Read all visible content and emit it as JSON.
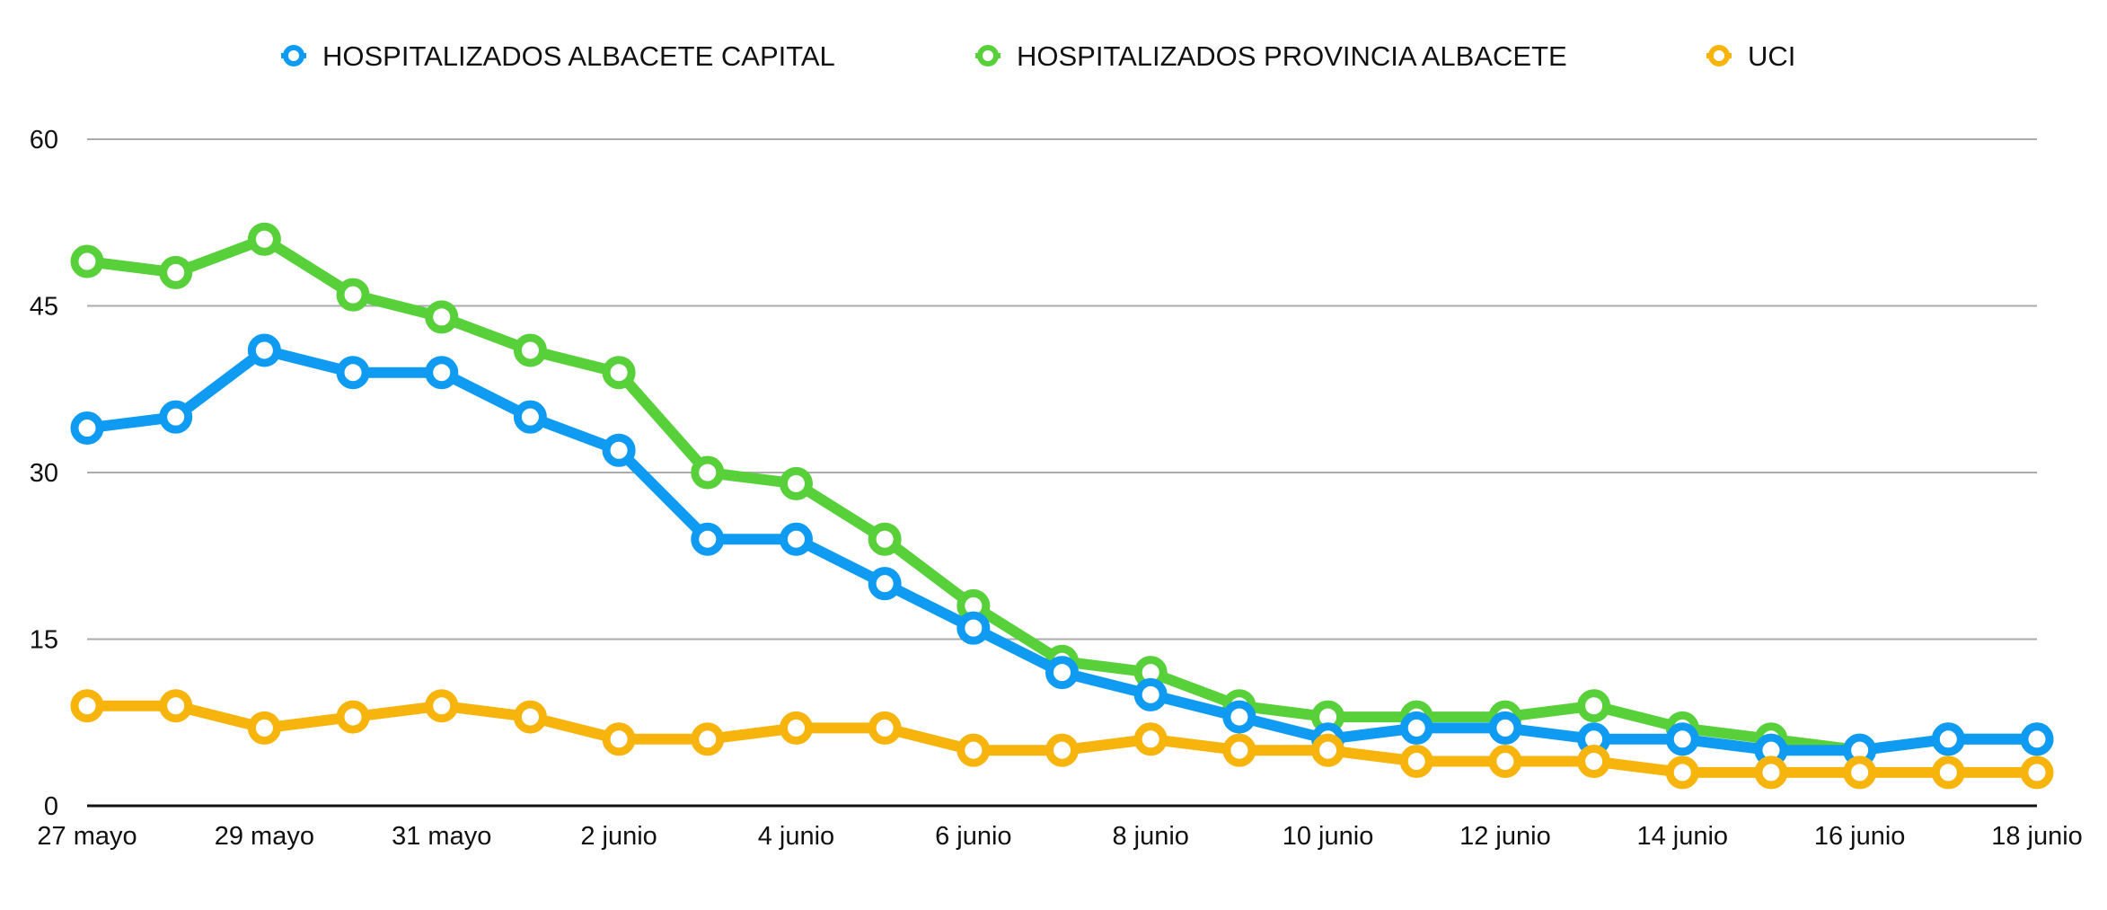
{
  "chart_data": {
    "type": "line",
    "title": "",
    "xlabel": "",
    "ylabel": "",
    "ylim": [
      0,
      60
    ],
    "yticks": [
      0,
      15,
      30,
      45,
      60
    ],
    "grid": true,
    "legend_position": "top",
    "x": [
      "27 mayo",
      "28 mayo",
      "29 mayo",
      "30 mayo",
      "31 mayo",
      "1 junio",
      "2 junio",
      "3 junio",
      "4 junio",
      "5 junio",
      "6 junio",
      "7 junio",
      "8 junio",
      "9 junio",
      "10 junio",
      "11 junio",
      "12 junio",
      "13 junio",
      "14 junio",
      "15 junio",
      "16 junio",
      "17 junio",
      "18 junio"
    ],
    "xtick_labels": [
      "27 mayo",
      "29 mayo",
      "31 mayo",
      "2 junio",
      "4 junio",
      "6 junio",
      "8 junio",
      "10 junio",
      "12 junio",
      "14 junio",
      "16 junio",
      "18 junio"
    ],
    "series": [
      {
        "name": "HOSPITALIZADOS PROVINCIA ALBACETE",
        "color": "#57D03A",
        "values": [
          49,
          48,
          51,
          46,
          44,
          41,
          39,
          30,
          29,
          24,
          18,
          13,
          12,
          9,
          8,
          8,
          8,
          9,
          7,
          6,
          5,
          6,
          6
        ]
      },
      {
        "name": "HOSPITALIZADOS ALBACETE CAPITAL",
        "color": "#0E9BF1",
        "values": [
          34,
          35,
          41,
          39,
          39,
          35,
          32,
          24,
          24,
          20,
          16,
          12,
          10,
          8,
          6,
          7,
          7,
          6,
          6,
          5,
          5,
          6,
          6
        ]
      },
      {
        "name": "UCI",
        "color": "#F7B40C",
        "values": [
          9,
          9,
          7,
          8,
          9,
          8,
          6,
          6,
          7,
          7,
          5,
          5,
          6,
          5,
          5,
          4,
          4,
          4,
          3,
          3,
          3,
          3,
          3
        ]
      }
    ],
    "legend_order": [
      1,
      0,
      2
    ]
  }
}
